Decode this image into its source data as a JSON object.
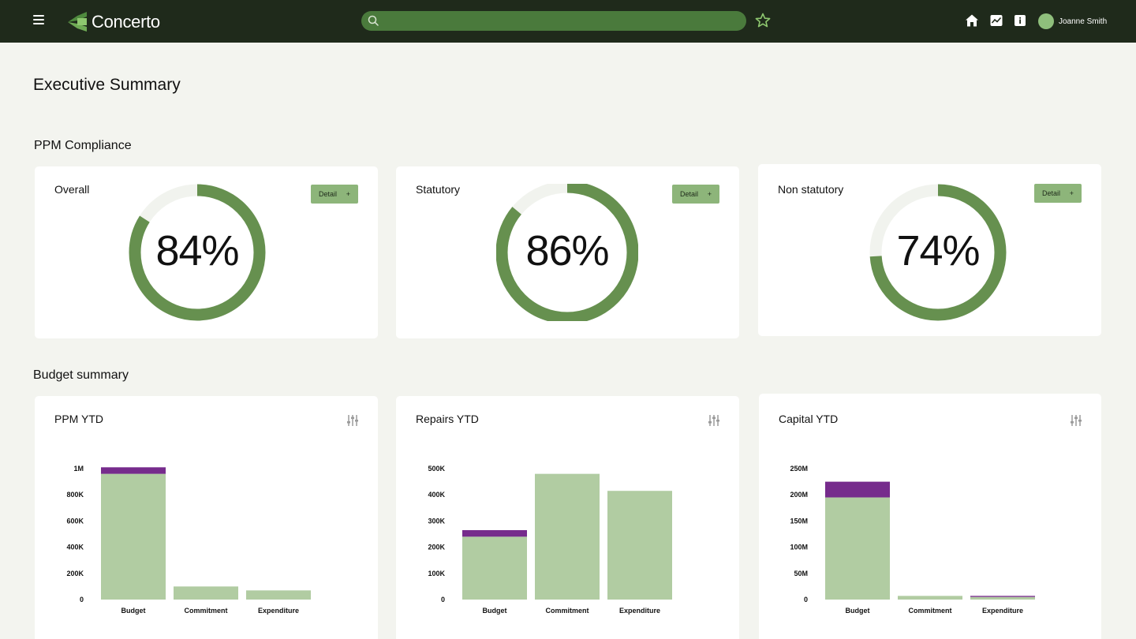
{
  "app": {
    "name": "Concerto"
  },
  "header": {
    "search_placeholder": "",
    "user_name": "Joanne Smith"
  },
  "page": {
    "title": "Executive Summary"
  },
  "sections": {
    "compliance": "PPM Compliance",
    "budget": "Budget summary"
  },
  "compliance_cards": [
    {
      "title": "Overall",
      "percent": 84,
      "label": "84%",
      "button": "Detail",
      "button_icon": "+"
    },
    {
      "title": "Statutory",
      "percent": 86,
      "label": "86%",
      "button": "Detail",
      "button_icon": "+"
    },
    {
      "title": "Non statutory",
      "percent": 74,
      "label": "74%",
      "button": "Detail",
      "button_icon": "+"
    }
  ],
  "colors": {
    "header_bg": "#1f2a1b",
    "search_bg": "#4a7a3c",
    "donut_fill": "#66904f",
    "donut_track": "#f1f3ee",
    "bar_base": "#b1cca2",
    "bar_overlay": "#762b8c",
    "button_bg": "#8db57a"
  },
  "chart_data": [
    {
      "type": "bar",
      "title": "PPM YTD",
      "categories": [
        "Budget",
        "Commitment",
        "Expenditure"
      ],
      "ylim": [
        0,
        1000000
      ],
      "ytick_values": [
        0,
        200000,
        400000,
        600000,
        800000,
        1000000
      ],
      "ytick_labels": [
        "0",
        "200K",
        "400K",
        "600K",
        "800K",
        "1M"
      ],
      "series": [
        {
          "values": [
            960000,
            100000,
            70000
          ]
        },
        {
          "values": [
            50000,
            0,
            0
          ]
        }
      ]
    },
    {
      "type": "bar",
      "title": "Repairs YTD",
      "categories": [
        "Budget",
        "Commitment",
        "Expenditure"
      ],
      "ylim": [
        0,
        500000
      ],
      "ytick_values": [
        0,
        100000,
        200000,
        300000,
        400000,
        500000
      ],
      "ytick_labels": [
        "0",
        "100K",
        "200K",
        "300K",
        "400K",
        "500K"
      ],
      "series": [
        {
          "values": [
            240000,
            480000,
            415000
          ]
        },
        {
          "values": [
            25000,
            0,
            0
          ]
        }
      ]
    },
    {
      "type": "bar",
      "title": "Capital YTD",
      "categories": [
        "Budget",
        "Commitment",
        "Expenditure"
      ],
      "ylim": [
        0,
        250000000
      ],
      "ytick_values": [
        0,
        50000000,
        100000000,
        150000000,
        200000000,
        250000000
      ],
      "ytick_labels": [
        "0",
        "50M",
        "100M",
        "150M",
        "200M",
        "250M"
      ],
      "series": [
        {
          "values": [
            195000000,
            7000000,
            5000000
          ]
        },
        {
          "values": [
            30000000,
            0,
            2000000
          ]
        }
      ]
    }
  ]
}
